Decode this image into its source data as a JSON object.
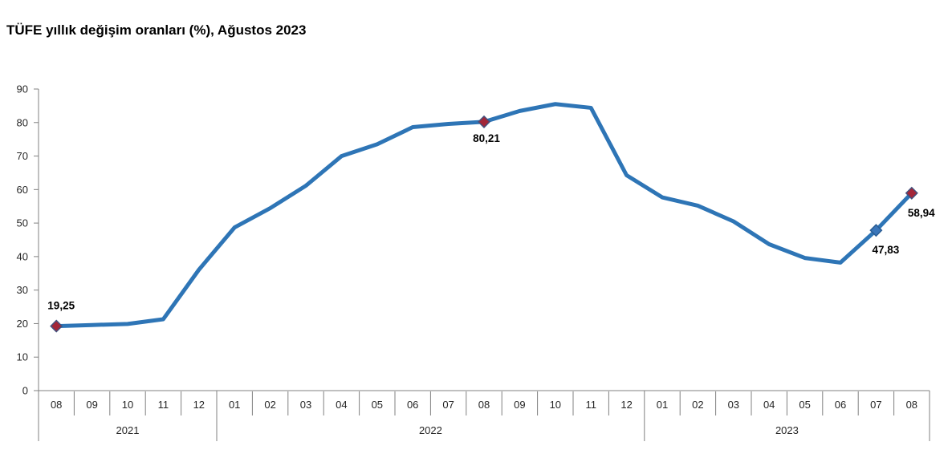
{
  "title": "TÜFE yıllık değişim oranları (%), Ağustos 2023",
  "colors": {
    "line": "#2e75b6",
    "axis": "#808080",
    "text": "#262626",
    "marker_red_fill": "#a32638",
    "marker_red_stroke": "#44517d",
    "marker_blue_fill": "#3a76ba",
    "marker_blue_stroke": "#2a5d94"
  },
  "chart_data": {
    "type": "line",
    "title": "TÜFE yıllık değişim oranları (%), Ağustos 2023",
    "ylabel": "",
    "xlabel": "",
    "ylim": [
      0,
      90
    ],
    "y_ticks": [
      0,
      10,
      20,
      30,
      40,
      50,
      60,
      70,
      80,
      90
    ],
    "grid": false,
    "legend": false,
    "x_groups": [
      {
        "year": "2021",
        "months": [
          "08",
          "09",
          "10",
          "11",
          "12"
        ]
      },
      {
        "year": "2022",
        "months": [
          "01",
          "02",
          "03",
          "04",
          "05",
          "06",
          "07",
          "08",
          "09",
          "10",
          "11",
          "12"
        ]
      },
      {
        "year": "2023",
        "months": [
          "01",
          "02",
          "03",
          "04",
          "05",
          "06",
          "07",
          "08"
        ]
      }
    ],
    "series": [
      {
        "values": [
          19.25,
          19.58,
          19.89,
          21.31,
          36.08,
          48.69,
          54.44,
          61.14,
          69.97,
          73.5,
          78.62,
          79.6,
          80.21,
          83.45,
          85.51,
          84.39,
          64.27,
          57.68,
          55.18,
          50.51,
          43.68,
          39.59,
          38.21,
          47.83,
          58.94
        ]
      }
    ],
    "annotations": [
      {
        "index": 0,
        "label": "19,25",
        "marker": "red",
        "label_pos": "above"
      },
      {
        "index": 12,
        "label": "80,21",
        "marker": "red",
        "label_pos": "below"
      },
      {
        "index": 23,
        "label": "47,83",
        "marker": "blue",
        "label_pos": "below-right"
      },
      {
        "index": 24,
        "label": "58,94",
        "marker": "red",
        "label_pos": "below-right"
      }
    ]
  }
}
